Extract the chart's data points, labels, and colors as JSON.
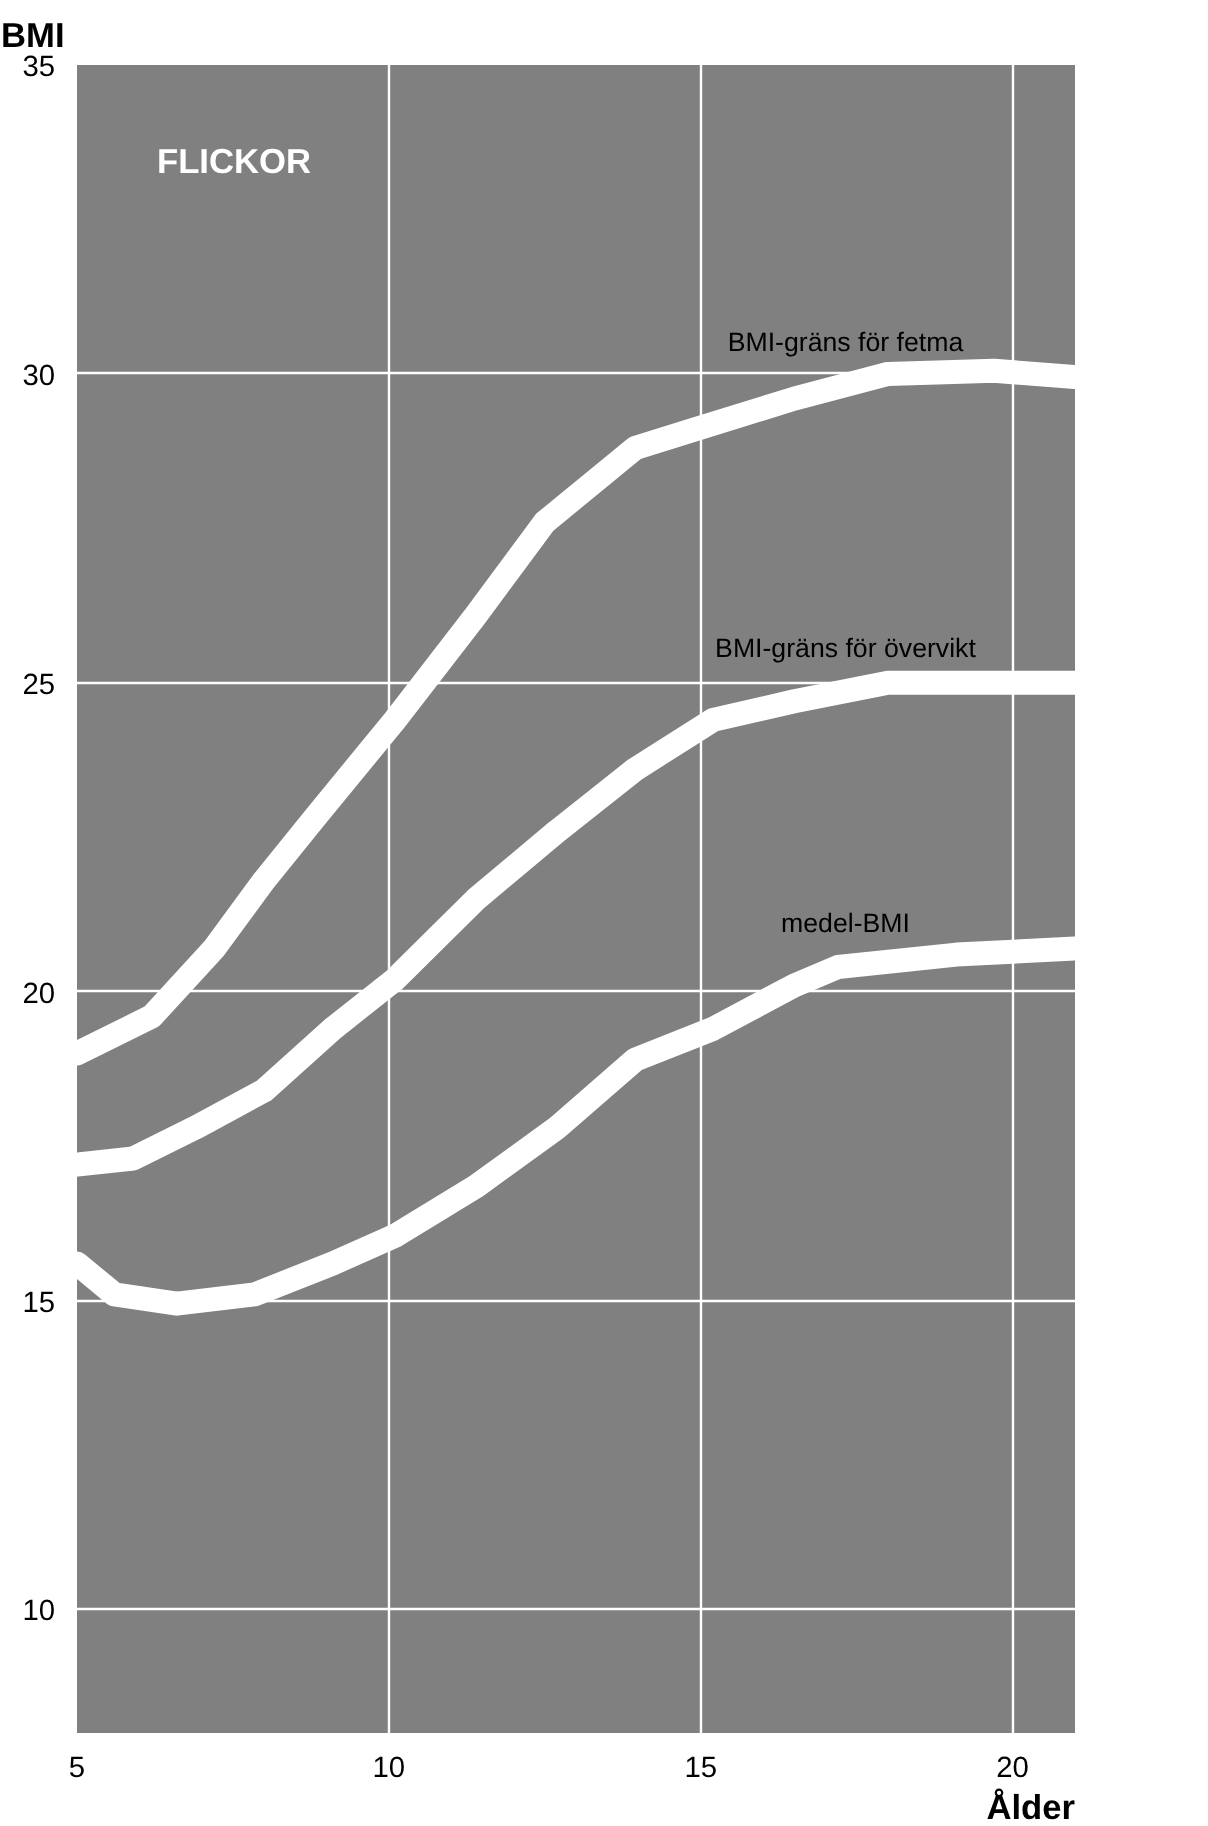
{
  "chart_data": {
    "type": "line",
    "subtitle": "FLICKOR",
    "xlabel": "Ålder",
    "ylabel": "BMI",
    "xlim": [
      5,
      21
    ],
    "ylim": [
      8,
      35
    ],
    "xticks": [
      5,
      10,
      15,
      20
    ],
    "yticks": [
      10,
      15,
      20,
      25,
      30,
      35
    ],
    "grid": true,
    "line_style": "solid",
    "series": [
      {
        "name": "BMI-gräns för fetma",
        "color": "#ffffff",
        "x": [
          5,
          6.2,
          7.2,
          8.0,
          8.8,
          10.1,
          11.4,
          12.5,
          13.95,
          14.9,
          16.5,
          18.0,
          19.7,
          21
        ],
        "values": [
          19.0,
          19.6,
          20.7,
          21.8,
          22.8,
          24.4,
          26.1,
          27.6,
          28.8,
          29.1,
          29.6,
          30.0,
          30.05,
          29.95
        ]
      },
      {
        "name": "BMI-gräns för övervikt",
        "color": "#ffffff",
        "x": [
          5,
          5.9,
          6.9,
          8.0,
          9.1,
          10.1,
          11.4,
          12.7,
          13.95,
          15.2,
          16.5,
          18.0,
          21
        ],
        "values": [
          17.2,
          17.3,
          17.8,
          18.4,
          19.4,
          20.2,
          21.5,
          22.6,
          23.6,
          24.4,
          24.7,
          25.0,
          25.0
        ]
      },
      {
        "name": "medel-BMI",
        "color": "#ffffff",
        "x": [
          5,
          5.6,
          6.6,
          7.85,
          9.1,
          10.1,
          11.4,
          12.7,
          13.95,
          15.2,
          16.5,
          17.2,
          19.1,
          21
        ],
        "values": [
          15.6,
          15.1,
          14.95,
          15.1,
          15.6,
          16.05,
          16.85,
          17.8,
          18.9,
          19.4,
          20.1,
          20.4,
          20.6,
          20.7
        ]
      }
    ]
  }
}
